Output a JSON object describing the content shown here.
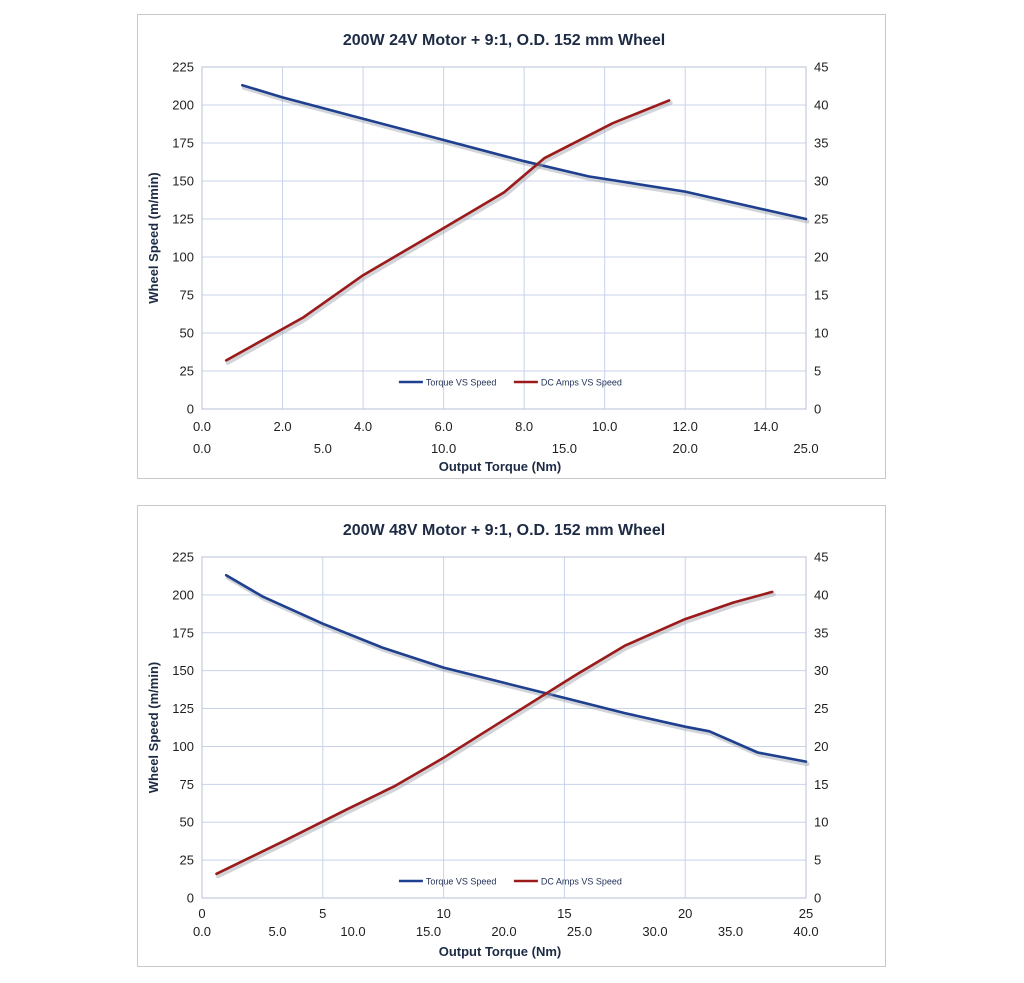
{
  "chart_data": [
    {
      "type": "line",
      "title": "200W  24V Motor + 9:1, O.D. 152 mm Wheel",
      "ylabel": "Wheel Speed (m/min)",
      "xlabel": "Output Torque  (Nm)",
      "ylim": [
        0,
        225
      ],
      "y_ticks": [
        "0",
        "25",
        "50",
        "75",
        "100",
        "125",
        "150",
        "175",
        "200",
        "225"
      ],
      "y2lim": [
        0,
        45
      ],
      "y2_ticks": [
        "0",
        "5",
        "10",
        "15",
        "20",
        "25",
        "30",
        "35",
        "40",
        "45"
      ],
      "xlim": [
        0,
        15
      ],
      "x_ticks": [
        "0.0",
        "2.0",
        "4.0",
        "6.0",
        "8.0",
        "10.0",
        "12.0",
        "14.0"
      ],
      "x2lim": [
        0,
        25
      ],
      "x2_ticks": [
        "0.0",
        "5.0",
        "10.0",
        "15.0",
        "20.0",
        "25.0"
      ],
      "grid": true,
      "legend": "bottom-center",
      "series": [
        {
          "name": "Torque VS Speed",
          "axis": "y",
          "color": "#1f3f8f",
          "x": [
            1.0,
            2.0,
            4.0,
            6.0,
            8.0,
            9.6,
            12.0,
            14.0,
            15.0
          ],
          "y": [
            213,
            205,
            191,
            177,
            163,
            153,
            143,
            131,
            125
          ]
        },
        {
          "name": "DC Amps VS Speed",
          "axis": "y2",
          "color": "#9b1b1b",
          "x": [
            0.6,
            2.5,
            4.0,
            6.0,
            7.5,
            8.5,
            10.2,
            11.6
          ],
          "y": [
            6.4,
            12,
            17.6,
            23.8,
            28.5,
            33,
            37.6,
            40.6
          ]
        }
      ]
    },
    {
      "type": "line",
      "title": "200W 48V Motor + 9:1, O.D. 152 mm Wheel",
      "ylabel": "Wheel Speed (m/min)",
      "xlabel": "Output Torque  (Nm)",
      "ylim": [
        0,
        225
      ],
      "y_ticks": [
        "0",
        "25",
        "50",
        "75",
        "100",
        "125",
        "150",
        "175",
        "200",
        "225"
      ],
      "y2lim": [
        0,
        45
      ],
      "y2_ticks": [
        "0",
        "5",
        "10",
        "15",
        "20",
        "25",
        "30",
        "35",
        "40",
        "45"
      ],
      "xlim": [
        0,
        25
      ],
      "x_ticks": [
        "0",
        "5",
        "10",
        "15",
        "20",
        "25"
      ],
      "x2lim": [
        0,
        40
      ],
      "x2_ticks": [
        "0.0",
        "5.0",
        "10.0",
        "15.0",
        "20.0",
        "25.0",
        "30.0",
        "35.0",
        "40.0"
      ],
      "grid": true,
      "legend": "bottom-center",
      "series": [
        {
          "name": "Torque VS Speed",
          "axis": "y",
          "color": "#1f3f8f",
          "x": [
            1.0,
            2.5,
            5.0,
            7.5,
            10.0,
            12.5,
            15.0,
            17.5,
            20.0,
            21.0,
            23.0,
            25.0
          ],
          "y": [
            213,
            199,
            181,
            165,
            152,
            142,
            132,
            122,
            113,
            110,
            96,
            90
          ]
        },
        {
          "name": "DC Amps VS Speed",
          "axis": "y2",
          "color": "#9b1b1b",
          "x": [
            0.6,
            3.5,
            6.0,
            8.0,
            10.0,
            13.0,
            15.5,
            17.5,
            20.0,
            22.0,
            23.6
          ],
          "y": [
            3.2,
            7.7,
            11.7,
            14.8,
            18.5,
            24.5,
            29.5,
            33.3,
            36.8,
            39.0,
            40.4
          ]
        }
      ]
    }
  ]
}
